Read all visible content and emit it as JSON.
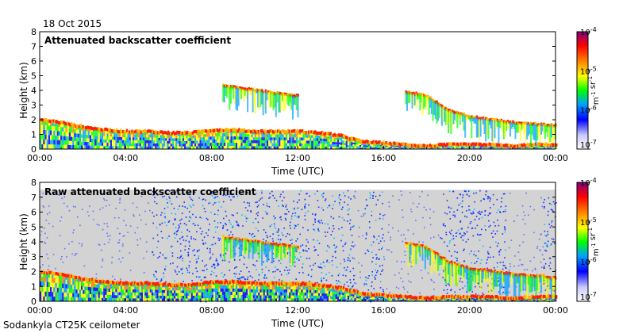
{
  "date_label": "18 Oct 2015",
  "instrument_label": "Sodankyla CT25K ceilometer",
  "colors": {
    "background": "#ffffff",
    "plot_bg": "#ffffff",
    "noise": "#d3d3d3",
    "axis": "#000000"
  },
  "chart_data": [
    {
      "type": "heatmap",
      "title": "Attenuated backscatter coefficient",
      "xlabel": "Time (UTC)",
      "ylabel": "Height (km)",
      "xlim": [
        0,
        24
      ],
      "ylim": [
        0,
        8
      ],
      "x_ticks": [
        "00:00",
        "04:00",
        "08:00",
        "12:00",
        "16:00",
        "20:00",
        "00:00"
      ],
      "y_ticks": [
        "0",
        "1",
        "2",
        "3",
        "4",
        "5",
        "6",
        "7",
        "8"
      ],
      "colorbar": {
        "ticks": [
          "10^-7",
          "10^-6",
          "10^-5",
          "10^-4"
        ],
        "label": "m^-1 sr^-1",
        "range_log10": [
          -7,
          -4
        ]
      },
      "layers": [
        {
          "name": "boundary-layer-top",
          "x": [
            0,
            1,
            2,
            3,
            4,
            5,
            6,
            7,
            8,
            9,
            10,
            11,
            12,
            13,
            14,
            15,
            16,
            17,
            18,
            19,
            20,
            21,
            22,
            23,
            24
          ],
          "y": [
            2.0,
            1.8,
            1.5,
            1.3,
            1.2,
            1.2,
            1.1,
            1.1,
            1.3,
            1.3,
            1.2,
            1.2,
            1.2,
            1.1,
            0.9,
            0.5,
            0.4,
            0.3,
            0.2,
            0.3,
            0.3,
            0.3,
            0.2,
            0.3,
            0.3
          ]
        },
        {
          "name": "cloud-layer",
          "x": [
            8.5,
            9,
            10,
            11,
            12
          ],
          "y": [
            4.3,
            4.2,
            4.0,
            3.8,
            3.6
          ]
        },
        {
          "name": "upper-layer",
          "x": [
            17,
            18,
            19,
            20,
            21,
            22,
            23,
            24
          ],
          "y": [
            3.9,
            3.6,
            2.6,
            2.2,
            2.0,
            1.8,
            1.7,
            1.6
          ]
        }
      ]
    },
    {
      "type": "heatmap",
      "title": "Raw attenuated backscatter coefficient",
      "xlabel": "Time (UTC)",
      "ylabel": "Height (km)",
      "xlim": [
        0,
        24
      ],
      "ylim": [
        0,
        8
      ],
      "x_ticks": [
        "00:00",
        "04:00",
        "08:00",
        "12:00",
        "16:00",
        "20:00",
        "00:00"
      ],
      "y_ticks": [
        "0",
        "1",
        "2",
        "3",
        "4",
        "5",
        "6",
        "7",
        "8"
      ],
      "colorbar": {
        "ticks": [
          "10^-7",
          "10^-6",
          "10^-5",
          "10^-4"
        ],
        "label": "m^-1 sr^-1",
        "range_log10": [
          -7,
          -4
        ]
      },
      "noise_top_km": 7.5,
      "noise_bands_hours": [
        [
          5.2,
          14.6
        ],
        [
          15.1,
          16.0
        ],
        [
          18.6,
          21.7
        ],
        [
          23.4,
          24.0
        ]
      ],
      "layers": [
        {
          "name": "boundary-layer-top",
          "x": [
            0,
            1,
            2,
            3,
            4,
            5,
            6,
            7,
            8,
            9,
            10,
            11,
            12,
            13,
            14,
            15,
            16,
            17,
            18,
            19,
            20,
            21,
            22,
            23,
            24
          ],
          "y": [
            2.0,
            1.8,
            1.5,
            1.3,
            1.2,
            1.2,
            1.1,
            1.1,
            1.3,
            1.3,
            1.2,
            1.2,
            1.2,
            1.1,
            0.9,
            0.5,
            0.4,
            0.3,
            0.2,
            0.3,
            0.3,
            0.3,
            0.2,
            0.3,
            0.3
          ]
        },
        {
          "name": "cloud-layer",
          "x": [
            8.5,
            9,
            10,
            11,
            12
          ],
          "y": [
            4.3,
            4.2,
            4.0,
            3.8,
            3.6
          ]
        },
        {
          "name": "upper-layer",
          "x": [
            17,
            18,
            19,
            20,
            21,
            22,
            23,
            24
          ],
          "y": [
            3.9,
            3.6,
            2.6,
            2.2,
            2.0,
            1.8,
            1.7,
            1.6
          ]
        }
      ]
    }
  ]
}
